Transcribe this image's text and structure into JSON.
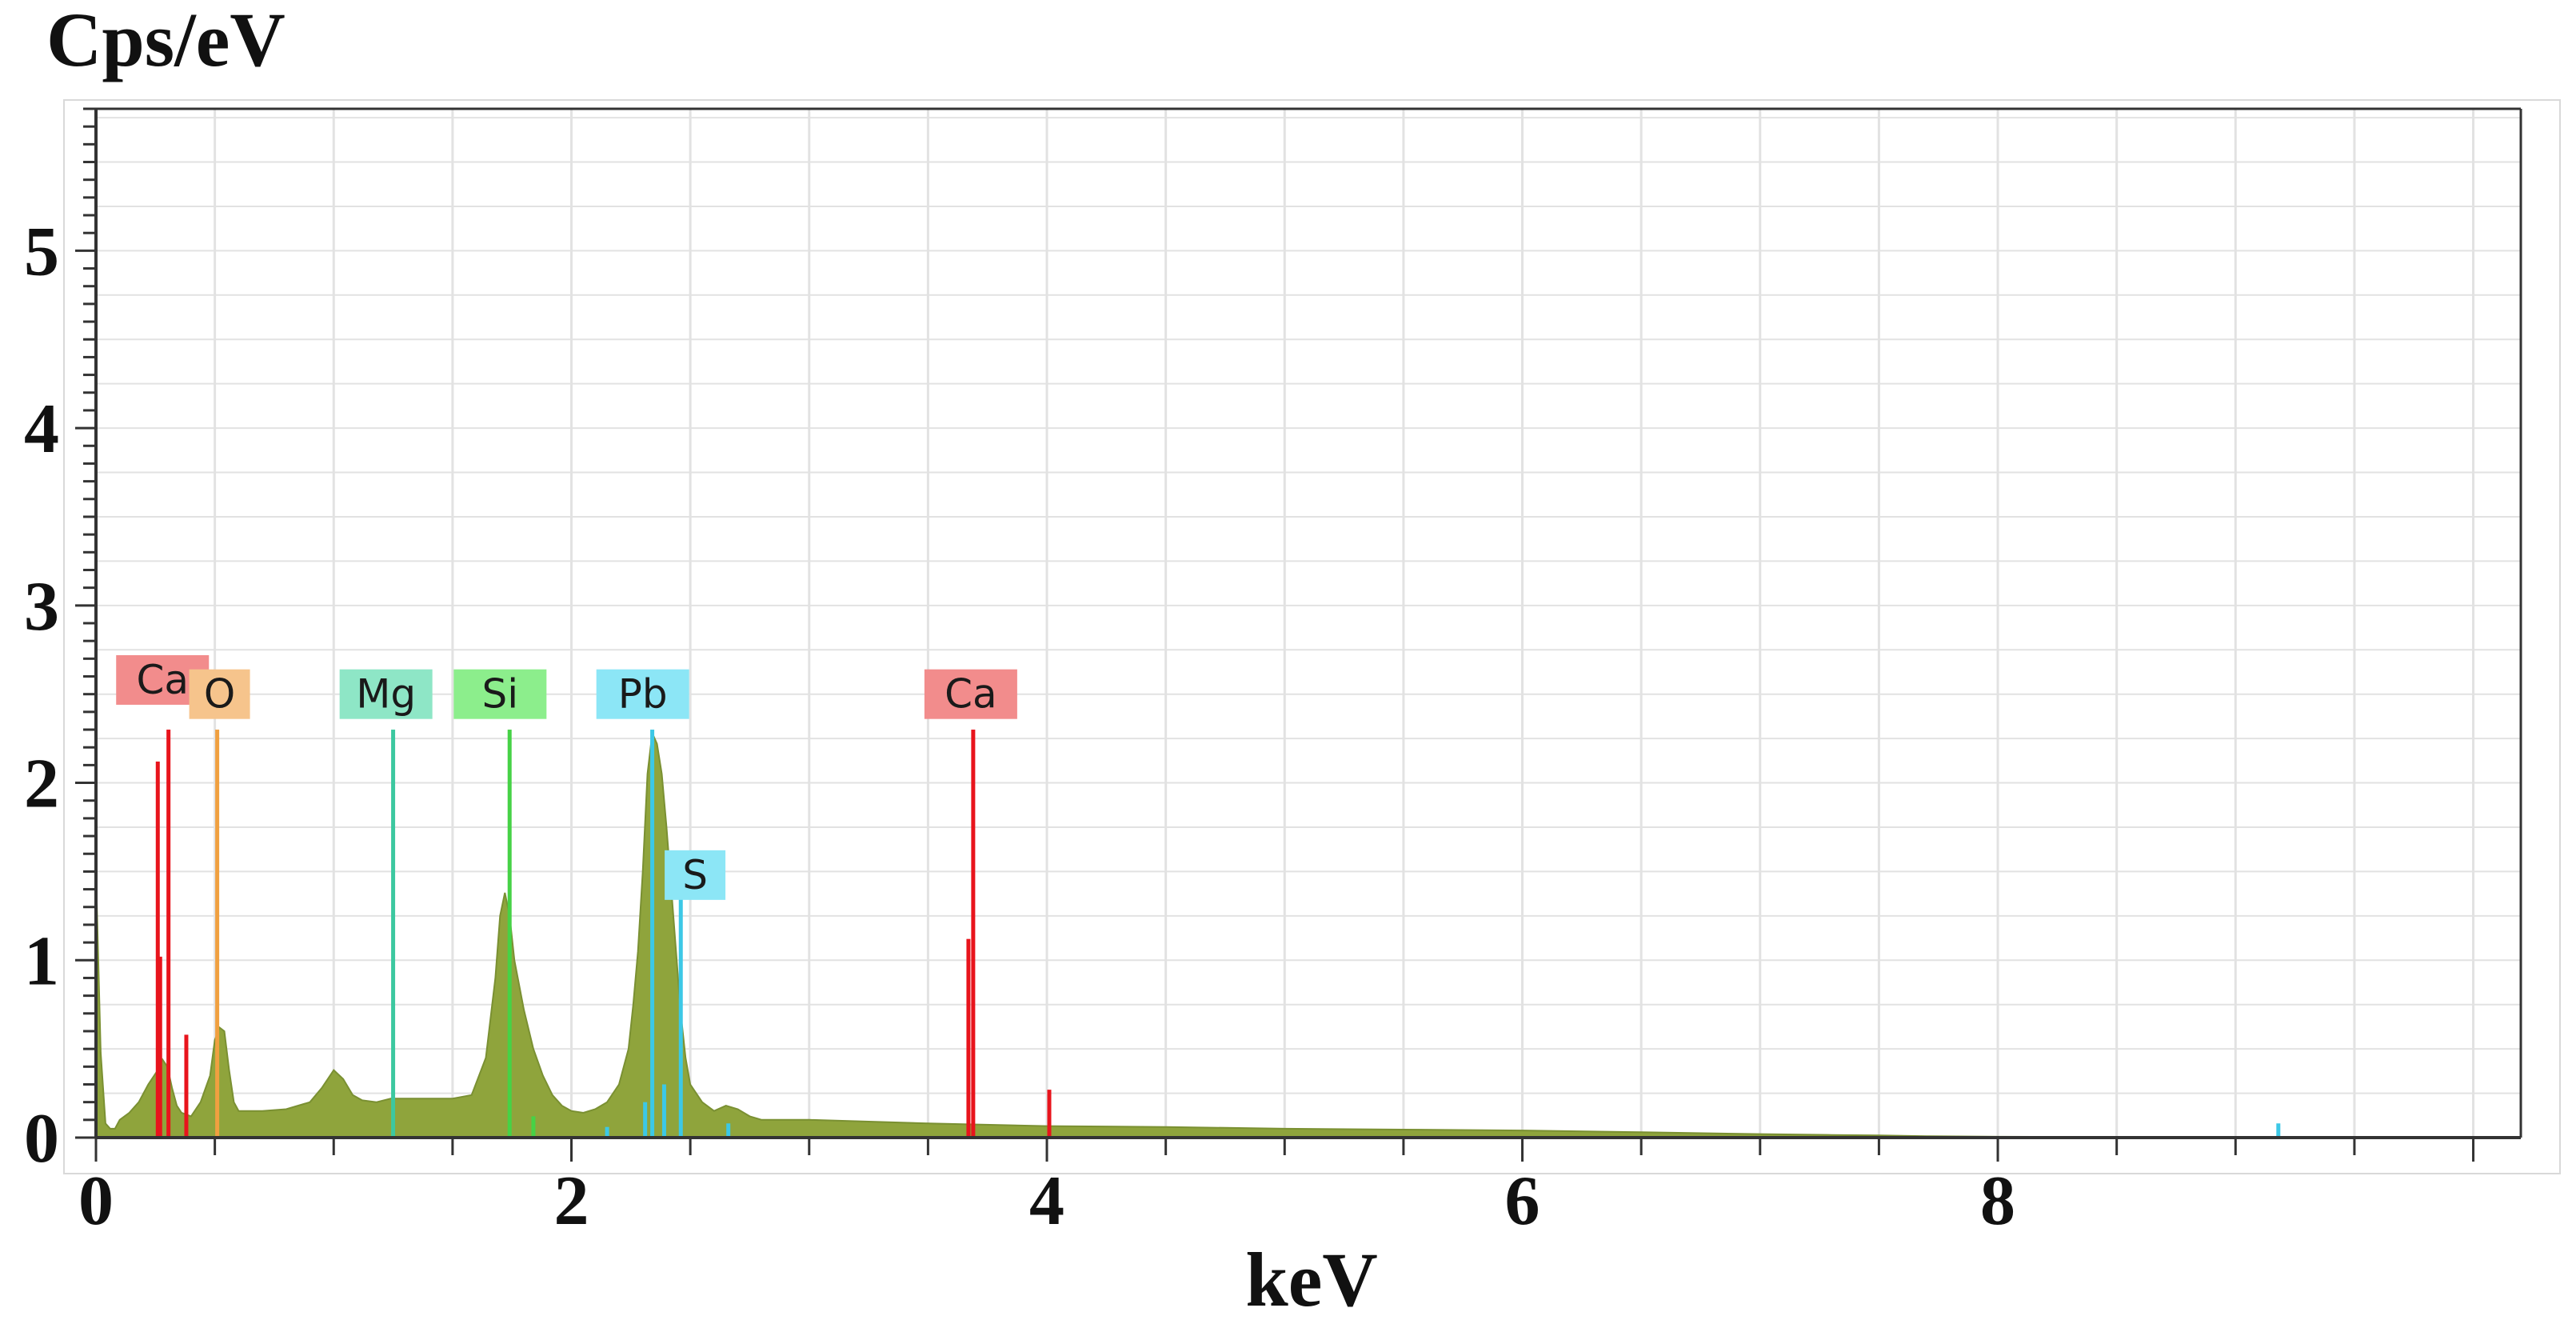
{
  "chart_data": {
    "type": "area",
    "xlabel": "keV",
    "ylabel": "Cps/eV",
    "xlim": [
      0,
      10.2
    ],
    "ylim": [
      0,
      5.8
    ],
    "x_ticks": [
      "0",
      "2",
      "4",
      "6",
      "8"
    ],
    "y_ticks": [
      "0",
      "1",
      "2",
      "3",
      "4",
      "5"
    ],
    "grid": true,
    "colors": {
      "spectrum_fill": "#8fa43c",
      "spectrum_edge": "#7a9032",
      "grid": "#e2e2e2",
      "frame": "#333333",
      "Ca": "#e8141c",
      "O": "#f0a040",
      "Mg": "#3cc8a0",
      "Si": "#46d246",
      "Pb": "#3cc8e6",
      "S": "#3cc8e6"
    },
    "series": [
      {
        "x": [
          0.0,
          0.02,
          0.04,
          0.06,
          0.08,
          0.1,
          0.14,
          0.18,
          0.22,
          0.26,
          0.28,
          0.3,
          0.32,
          0.34,
          0.36,
          0.4,
          0.44,
          0.48,
          0.5,
          0.52,
          0.54,
          0.56,
          0.58,
          0.6,
          0.65,
          0.7,
          0.8,
          0.9,
          0.95,
          1.0,
          1.04,
          1.08,
          1.12,
          1.18,
          1.24,
          1.3,
          1.4,
          1.5,
          1.58,
          1.64,
          1.68,
          1.7,
          1.72,
          1.74,
          1.76,
          1.8,
          1.84,
          1.88,
          1.92,
          1.96,
          2.0,
          2.05,
          2.1,
          2.15,
          2.2,
          2.24,
          2.26,
          2.28,
          2.3,
          2.32,
          2.34,
          2.36,
          2.38,
          2.4,
          2.42,
          2.44,
          2.46,
          2.48,
          2.5,
          2.55,
          2.6,
          2.65,
          2.7,
          2.75,
          2.8,
          3.0,
          3.5,
          4.0,
          4.5,
          5.0,
          5.5,
          6.0,
          6.5,
          7.0,
          7.3,
          7.5,
          7.7,
          8.0,
          9.0,
          10.0
        ],
        "y": [
          1.5,
          0.48,
          0.08,
          0.05,
          0.05,
          0.1,
          0.14,
          0.2,
          0.3,
          0.38,
          0.44,
          0.4,
          0.28,
          0.18,
          0.14,
          0.12,
          0.2,
          0.35,
          0.55,
          0.62,
          0.6,
          0.38,
          0.2,
          0.15,
          0.15,
          0.15,
          0.16,
          0.2,
          0.28,
          0.38,
          0.33,
          0.24,
          0.21,
          0.2,
          0.22,
          0.22,
          0.22,
          0.22,
          0.24,
          0.45,
          0.9,
          1.25,
          1.38,
          1.25,
          1.0,
          0.72,
          0.5,
          0.35,
          0.24,
          0.18,
          0.15,
          0.14,
          0.16,
          0.2,
          0.3,
          0.5,
          0.75,
          1.05,
          1.5,
          2.05,
          2.28,
          2.22,
          2.05,
          1.75,
          1.4,
          1.05,
          0.7,
          0.45,
          0.3,
          0.2,
          0.15,
          0.18,
          0.16,
          0.12,
          0.1,
          0.1,
          0.08,
          0.065,
          0.06,
          0.05,
          0.045,
          0.04,
          0.03,
          0.02,
          0.015,
          0.012,
          0.008,
          0.005,
          0.003,
          0.002
        ]
      }
    ],
    "element_lines": [
      {
        "element": "Ca",
        "energy": 0.26,
        "height": 2.12
      },
      {
        "element": "Ca",
        "energy": 0.27,
        "height": 1.02
      },
      {
        "element": "Ca",
        "energy": 0.305,
        "height": 2.3
      },
      {
        "element": "Ca",
        "energy": 0.38,
        "height": 0.58
      },
      {
        "element": "O",
        "energy": 0.51,
        "height": 2.3
      },
      {
        "element": "Mg",
        "energy": 1.25,
        "height": 2.3
      },
      {
        "element": "Si",
        "energy": 1.74,
        "height": 2.3
      },
      {
        "element": "Si",
        "energy": 1.84,
        "height": 0.12
      },
      {
        "element": "Pb",
        "energy": 2.15,
        "height": 0.06
      },
      {
        "element": "Pb",
        "energy": 2.34,
        "height": 2.3
      },
      {
        "element": "Pb",
        "energy": 2.39,
        "height": 0.3
      },
      {
        "element": "S",
        "energy": 2.31,
        "height": 0.2
      },
      {
        "element": "S",
        "energy": 2.46,
        "height": 1.35
      },
      {
        "element": "Pb",
        "energy": 2.66,
        "height": 0.08
      },
      {
        "element": "Ca",
        "energy": 3.69,
        "height": 2.3
      },
      {
        "element": "Ca",
        "energy": 3.67,
        "height": 1.12
      },
      {
        "element": "Ca",
        "energy": 4.01,
        "height": 0.27
      },
      {
        "element": "Pb",
        "energy": 9.18,
        "height": 0.08
      }
    ],
    "peak_labels": [
      {
        "text": "Ca",
        "element": "Ca",
        "energy": 0.28,
        "level": 2.58
      },
      {
        "text": "O",
        "element": "O",
        "energy": 0.52,
        "level": 2.5
      },
      {
        "text": "Mg",
        "element": "Mg",
        "energy": 1.22,
        "level": 2.5
      },
      {
        "text": "Si",
        "element": "Si",
        "energy": 1.7,
        "level": 2.5
      },
      {
        "text": "Pb",
        "element": "Pb",
        "energy": 2.3,
        "level": 2.5
      },
      {
        "text": "S",
        "element": "S",
        "energy": 2.52,
        "level": 1.48
      },
      {
        "text": "Ca",
        "element": "Ca",
        "energy": 3.68,
        "level": 2.5
      }
    ]
  }
}
